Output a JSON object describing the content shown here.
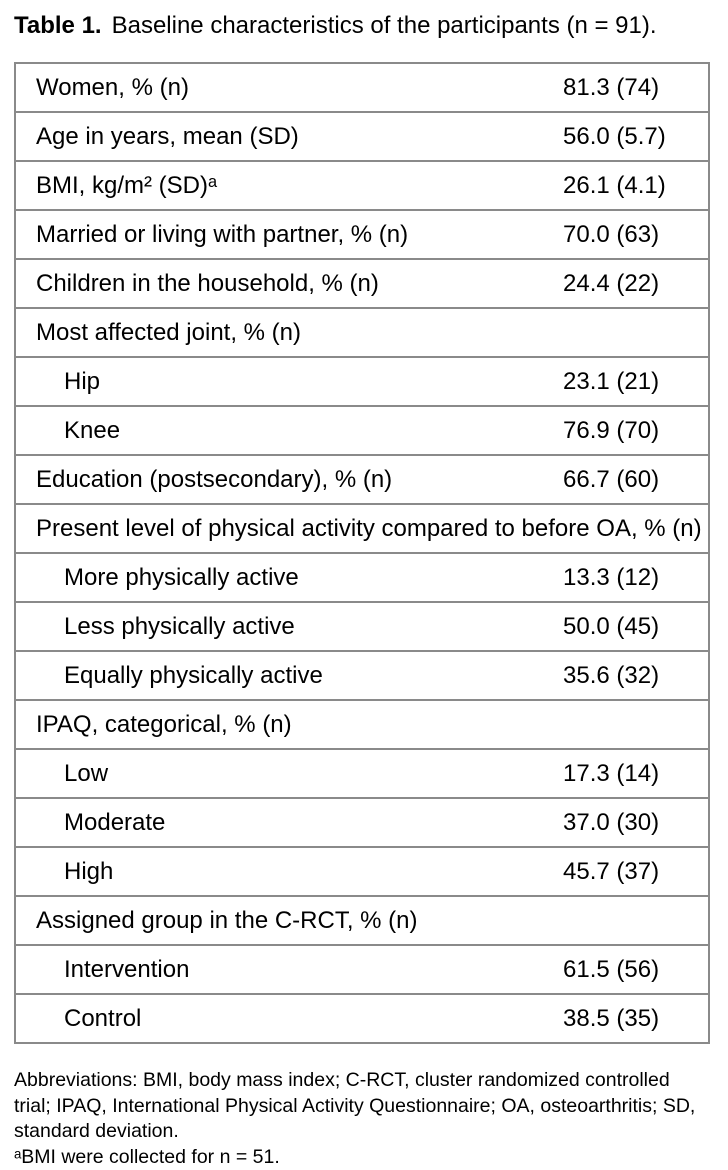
{
  "caption": {
    "label": "Table 1.",
    "text": "Baseline characteristics of the participants (n = 91)."
  },
  "table": {
    "rows": [
      {
        "label": "Women, % (n)",
        "value": "81.3 (74)",
        "indent": false,
        "section": false
      },
      {
        "label": "Age in years, mean (SD)",
        "value": "56.0 (5.7)",
        "indent": false,
        "section": false
      },
      {
        "label": "BMI, kg/m² (SD)ᵃ",
        "value": "26.1 (4.1)",
        "indent": false,
        "section": false
      },
      {
        "label": "Married or living with partner, % (n)",
        "value": "70.0 (63)",
        "indent": false,
        "section": false
      },
      {
        "label": "Children in the household, % (n)",
        "value": "24.4 (22)",
        "indent": false,
        "section": false
      },
      {
        "label": "Most affected joint, % (n)",
        "value": "",
        "indent": false,
        "section": true
      },
      {
        "label": "Hip",
        "value": "23.1 (21)",
        "indent": true,
        "section": false
      },
      {
        "label": "Knee",
        "value": "76.9 (70)",
        "indent": true,
        "section": false
      },
      {
        "label": "Education (postsecondary), % (n)",
        "value": "66.7 (60)",
        "indent": false,
        "section": false
      },
      {
        "label": "Present level of physical activity compared to before OA, % (n)",
        "value": "",
        "indent": false,
        "section": true
      },
      {
        "label": "More physically active",
        "value": "13.3 (12)",
        "indent": true,
        "section": false
      },
      {
        "label": "Less physically active",
        "value": "50.0 (45)",
        "indent": true,
        "section": false
      },
      {
        "label": "Equally physically active",
        "value": "35.6 (32)",
        "indent": true,
        "section": false
      },
      {
        "label": "IPAQ, categorical, % (n)",
        "value": "",
        "indent": false,
        "section": true
      },
      {
        "label": "Low",
        "value": "17.3 (14)",
        "indent": true,
        "section": false
      },
      {
        "label": "Moderate",
        "value": "37.0 (30)",
        "indent": true,
        "section": false
      },
      {
        "label": "High",
        "value": "45.7 (37)",
        "indent": true,
        "section": false
      },
      {
        "label": "Assigned group in the C-RCT, % (n)",
        "value": "",
        "indent": false,
        "section": true
      },
      {
        "label": "Intervention",
        "value": "61.5 (56)",
        "indent": true,
        "section": false
      },
      {
        "label": "Control",
        "value": "38.5 (35)",
        "indent": true,
        "section": false
      }
    ]
  },
  "footnotes": {
    "abbreviations": "Abbreviations: BMI, body mass index; C-RCT, cluster randomized controlled trial; IPAQ, International Physical Activity Questionnaire; OA, osteoarthritis; SD, standard deviation.",
    "footnote_a": "ᵃBMI were collected for n = 51."
  },
  "colors": {
    "border": "#8a8a8a",
    "text": "#000000",
    "background": "#ffffff"
  }
}
